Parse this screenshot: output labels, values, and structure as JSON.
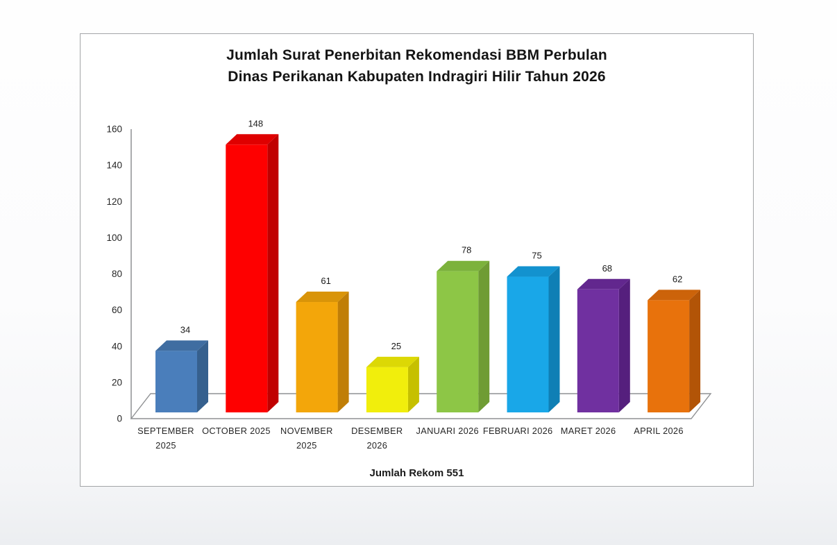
{
  "chart": {
    "title_line1": "Jumlah Surat Penerbitan Rekomendasi BBM Perbulan",
    "title_line2": "Dinas Perikanan Kabupaten Indragiri Hilir Tahun 2026",
    "footer": "Jumlah Rekom 551",
    "colors": {
      "frame_border": "#a3a5a7",
      "axis_line": "#8f9193",
      "tick_text": "#262626",
      "category_text": "#262626",
      "value_text": "#1a1a1a",
      "title_text": "#141414"
    }
  },
  "chart_data": {
    "type": "bar",
    "style": "3d-column",
    "title": "Jumlah Surat Penerbitan Rekomendasi BBM Perbulan Dinas Perikanan Kabupaten Indragiri Hilir Tahun 2026",
    "xlabel": "Jumlah Rekom 551",
    "ylabel": "",
    "ylim": [
      0,
      160
    ],
    "yticks": [
      0,
      20,
      40,
      60,
      80,
      100,
      120,
      140,
      160
    ],
    "grid": false,
    "legend": "none",
    "total": 551,
    "categories": [
      "SEPTEMBER 2025",
      "OCTOBER 2025",
      "NOVEMBER 2025",
      "DESEMBER 2026",
      "JANUARI 2026",
      "FEBRUARI 2026",
      "MARET 2026",
      "APRIL 2026"
    ],
    "category_label_lines": [
      [
        "SEPTEMBER",
        "2025"
      ],
      [
        "OCTOBER 2025"
      ],
      [
        "NOVEMBER",
        "2025"
      ],
      [
        "DESEMBER",
        "2026"
      ],
      [
        "JANUARI 2026"
      ],
      [
        "FEBRUARI 2026"
      ],
      [
        "MARET 2026"
      ],
      [
        "APRIL 2026"
      ]
    ],
    "values": [
      34,
      148,
      61,
      25,
      78,
      75,
      68,
      62
    ],
    "bar_colors": [
      {
        "front": "#4a7ebb",
        "side": "#36608e",
        "top": "#3f6da1"
      },
      {
        "front": "#fe0000",
        "side": "#c00000",
        "top": "#df0000"
      },
      {
        "front": "#f3a60a",
        "side": "#c07e06",
        "top": "#d99408"
      },
      {
        "front": "#f1ee0c",
        "side": "#c6c000",
        "top": "#dcd805"
      },
      {
        "front": "#8dc646",
        "side": "#6f9c34",
        "top": "#7cb23c"
      },
      {
        "front": "#19a7e8",
        "side": "#0f7fb5",
        "top": "#1392cf"
      },
      {
        "front": "#7030a0",
        "side": "#551f7d",
        "top": "#62278e"
      },
      {
        "front": "#e8720c",
        "side": "#b25407",
        "top": "#cc630a"
      }
    ]
  }
}
